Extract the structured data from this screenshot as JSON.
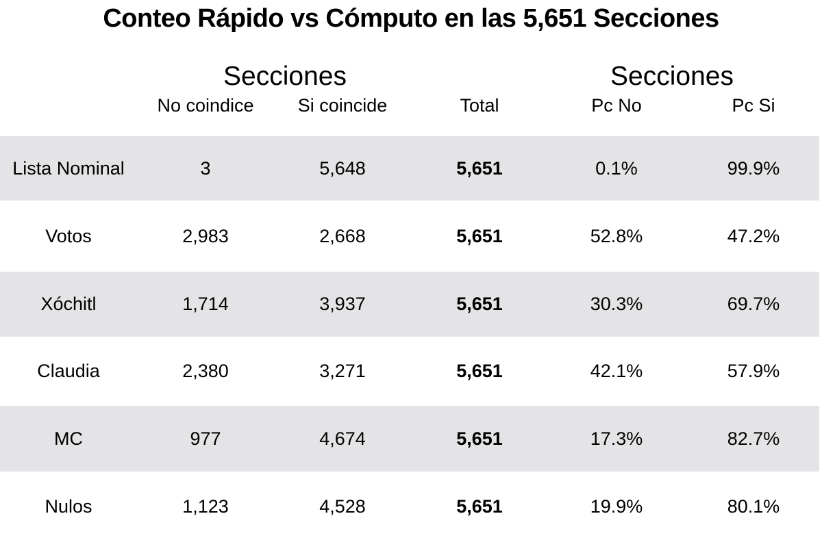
{
  "title": "Conteo Rápido vs Cómputo en las 5,651 Secciones",
  "colors": {
    "stripe_bg": "#e4e4e7",
    "text": "#000000",
    "background": "#ffffff"
  },
  "chart_data": {
    "type": "table",
    "title": "Conteo Rápido vs Cómputo en las 5,651 Secciones",
    "group_headers": {
      "left": "Secciones",
      "right": "Secciones"
    },
    "columns": [
      "",
      "No coindice",
      "Si coincide",
      "Total",
      "Pc No",
      "Pc Si"
    ],
    "rows": [
      [
        "Lista Nominal",
        "3",
        "5,648",
        "5,651",
        "0.1%",
        "99.9%"
      ],
      [
        "Votos",
        "2,983",
        "2,668",
        "5,651",
        "52.8%",
        "47.2%"
      ],
      [
        "Xóchitl",
        "1,714",
        "3,937",
        "5,651",
        "30.3%",
        "69.7%"
      ],
      [
        "Claudia",
        "2,380",
        "3,271",
        "5,651",
        "42.1%",
        "57.9%"
      ],
      [
        "MC",
        "977",
        "4,674",
        "5,651",
        "17.3%",
        "82.7%"
      ],
      [
        "Nulos",
        "1,123",
        "4,528",
        "5,651",
        "19.9%",
        "80.1%"
      ]
    ],
    "layout_hints": {
      "striped_rows": [
        0,
        2,
        4
      ],
      "bold_column": "Total",
      "grid": "off",
      "legend": "none"
    }
  }
}
